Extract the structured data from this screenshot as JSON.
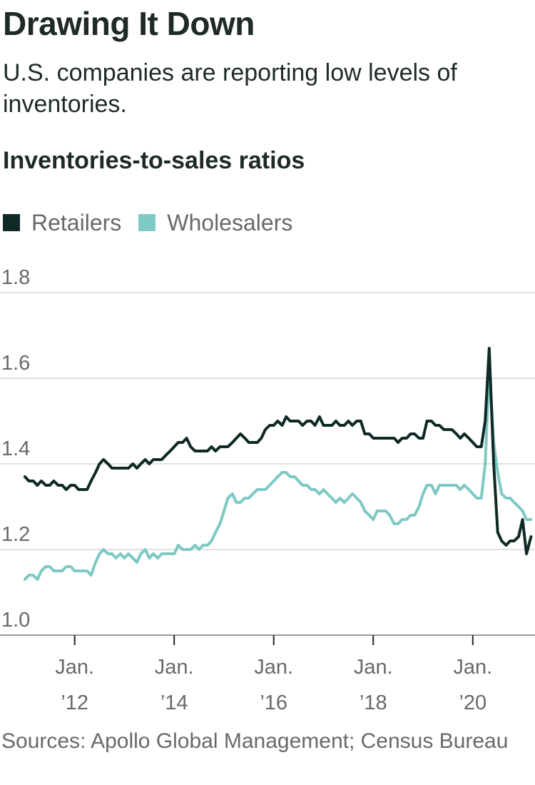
{
  "title": "Drawing It Down",
  "subtitle": "U.S. companies are reporting low levels of inventories.",
  "chart_heading": "Inventories-to-sales ratios",
  "source": "Sources: Apollo Global Management; Census Bureau",
  "chart_data": {
    "type": "line",
    "title": "Inventories-to-sales ratios",
    "xlabel": "",
    "ylabel": "",
    "xlim": [
      2010.5,
      2021.25
    ],
    "ylim": [
      1.0,
      1.8
    ],
    "y_ticks": [
      1.0,
      1.2,
      1.4,
      1.6,
      1.8
    ],
    "x_ticks": [
      {
        "x": 2012,
        "line1": "Jan.",
        "line2": "’12"
      },
      {
        "x": 2014,
        "line1": "Jan.",
        "line2": "’14"
      },
      {
        "x": 2016,
        "line1": "Jan.",
        "line2": "’16"
      },
      {
        "x": 2018,
        "line1": "Jan.",
        "line2": "’18"
      },
      {
        "x": 2020,
        "line1": "Jan.",
        "line2": "’20"
      }
    ],
    "grid": "horizontal",
    "legend_position": "top-left",
    "series": [
      {
        "name": "Retailers",
        "color": "#0f2a26",
        "x": [
          2011.0,
          2011.08,
          2011.17,
          2011.25,
          2011.33,
          2011.42,
          2011.5,
          2011.58,
          2011.67,
          2011.75,
          2011.83,
          2011.92,
          2012.0,
          2012.08,
          2012.17,
          2012.25,
          2012.33,
          2012.42,
          2012.5,
          2012.58,
          2012.67,
          2012.75,
          2012.83,
          2012.92,
          2013.0,
          2013.08,
          2013.17,
          2013.25,
          2013.33,
          2013.42,
          2013.5,
          2013.58,
          2013.67,
          2013.75,
          2013.83,
          2013.92,
          2014.0,
          2014.08,
          2014.17,
          2014.25,
          2014.33,
          2014.42,
          2014.5,
          2014.58,
          2014.67,
          2014.75,
          2014.83,
          2014.92,
          2015.0,
          2015.08,
          2015.17,
          2015.25,
          2015.33,
          2015.42,
          2015.5,
          2015.58,
          2015.67,
          2015.75,
          2015.83,
          2015.92,
          2016.0,
          2016.08,
          2016.17,
          2016.25,
          2016.33,
          2016.42,
          2016.5,
          2016.58,
          2016.67,
          2016.75,
          2016.83,
          2016.92,
          2017.0,
          2017.08,
          2017.17,
          2017.25,
          2017.33,
          2017.42,
          2017.5,
          2017.58,
          2017.67,
          2017.75,
          2017.83,
          2017.92,
          2018.0,
          2018.08,
          2018.17,
          2018.25,
          2018.33,
          2018.42,
          2018.5,
          2018.58,
          2018.67,
          2018.75,
          2018.83,
          2018.92,
          2019.0,
          2019.08,
          2019.17,
          2019.25,
          2019.33,
          2019.42,
          2019.5,
          2019.58,
          2019.67,
          2019.75,
          2019.83,
          2019.92,
          2020.0,
          2020.08,
          2020.17,
          2020.25,
          2020.33,
          2020.42,
          2020.5,
          2020.58,
          2020.67,
          2020.75,
          2020.83,
          2020.92,
          2021.0,
          2021.08,
          2021.17
        ],
        "values": [
          1.37,
          1.36,
          1.36,
          1.35,
          1.36,
          1.35,
          1.35,
          1.36,
          1.35,
          1.35,
          1.34,
          1.35,
          1.35,
          1.34,
          1.34,
          1.34,
          1.36,
          1.38,
          1.4,
          1.41,
          1.4,
          1.39,
          1.39,
          1.39,
          1.39,
          1.39,
          1.4,
          1.39,
          1.4,
          1.41,
          1.4,
          1.41,
          1.41,
          1.41,
          1.42,
          1.43,
          1.44,
          1.45,
          1.45,
          1.46,
          1.44,
          1.43,
          1.43,
          1.43,
          1.43,
          1.44,
          1.43,
          1.44,
          1.44,
          1.44,
          1.45,
          1.46,
          1.47,
          1.46,
          1.45,
          1.45,
          1.45,
          1.46,
          1.48,
          1.49,
          1.49,
          1.5,
          1.49,
          1.51,
          1.5,
          1.5,
          1.5,
          1.49,
          1.5,
          1.5,
          1.49,
          1.51,
          1.49,
          1.49,
          1.49,
          1.5,
          1.49,
          1.49,
          1.5,
          1.49,
          1.5,
          1.5,
          1.47,
          1.47,
          1.46,
          1.46,
          1.46,
          1.46,
          1.46,
          1.46,
          1.45,
          1.46,
          1.46,
          1.47,
          1.47,
          1.46,
          1.46,
          1.5,
          1.5,
          1.49,
          1.49,
          1.48,
          1.48,
          1.48,
          1.47,
          1.46,
          1.47,
          1.46,
          1.45,
          1.44,
          1.44,
          1.5,
          1.67,
          1.4,
          1.24,
          1.22,
          1.21,
          1.22,
          1.22,
          1.23,
          1.27,
          1.19,
          1.23
        ]
      },
      {
        "name": "Wholesalers",
        "color": "#7ec9c3",
        "x": [
          2011.0,
          2011.08,
          2011.17,
          2011.25,
          2011.33,
          2011.42,
          2011.5,
          2011.58,
          2011.67,
          2011.75,
          2011.83,
          2011.92,
          2012.0,
          2012.08,
          2012.17,
          2012.25,
          2012.33,
          2012.42,
          2012.5,
          2012.58,
          2012.67,
          2012.75,
          2012.83,
          2012.92,
          2013.0,
          2013.08,
          2013.17,
          2013.25,
          2013.33,
          2013.42,
          2013.5,
          2013.58,
          2013.67,
          2013.75,
          2013.83,
          2013.92,
          2014.0,
          2014.08,
          2014.17,
          2014.25,
          2014.33,
          2014.42,
          2014.5,
          2014.58,
          2014.67,
          2014.75,
          2014.83,
          2014.92,
          2015.0,
          2015.08,
          2015.17,
          2015.25,
          2015.33,
          2015.42,
          2015.5,
          2015.58,
          2015.67,
          2015.75,
          2015.83,
          2015.92,
          2016.0,
          2016.08,
          2016.17,
          2016.25,
          2016.33,
          2016.42,
          2016.5,
          2016.58,
          2016.67,
          2016.75,
          2016.83,
          2016.92,
          2017.0,
          2017.08,
          2017.17,
          2017.25,
          2017.33,
          2017.42,
          2017.5,
          2017.58,
          2017.67,
          2017.75,
          2017.83,
          2017.92,
          2018.0,
          2018.08,
          2018.17,
          2018.25,
          2018.33,
          2018.42,
          2018.5,
          2018.58,
          2018.67,
          2018.75,
          2018.83,
          2018.92,
          2019.0,
          2019.08,
          2019.17,
          2019.25,
          2019.33,
          2019.42,
          2019.5,
          2019.58,
          2019.67,
          2019.75,
          2019.83,
          2019.92,
          2020.0,
          2020.08,
          2020.17,
          2020.25,
          2020.33,
          2020.42,
          2020.5,
          2020.58,
          2020.67,
          2020.75,
          2020.83,
          2020.92,
          2021.0,
          2021.08,
          2021.17
        ],
        "values": [
          1.13,
          1.14,
          1.14,
          1.13,
          1.15,
          1.16,
          1.16,
          1.15,
          1.15,
          1.15,
          1.16,
          1.16,
          1.15,
          1.15,
          1.15,
          1.15,
          1.14,
          1.17,
          1.19,
          1.2,
          1.19,
          1.19,
          1.18,
          1.19,
          1.18,
          1.19,
          1.18,
          1.17,
          1.19,
          1.2,
          1.18,
          1.19,
          1.18,
          1.19,
          1.19,
          1.19,
          1.19,
          1.21,
          1.2,
          1.2,
          1.2,
          1.21,
          1.2,
          1.21,
          1.21,
          1.22,
          1.24,
          1.26,
          1.29,
          1.32,
          1.33,
          1.31,
          1.31,
          1.32,
          1.32,
          1.33,
          1.34,
          1.34,
          1.34,
          1.35,
          1.36,
          1.37,
          1.38,
          1.38,
          1.37,
          1.37,
          1.36,
          1.35,
          1.35,
          1.34,
          1.34,
          1.33,
          1.34,
          1.33,
          1.32,
          1.31,
          1.32,
          1.31,
          1.32,
          1.33,
          1.32,
          1.31,
          1.29,
          1.28,
          1.27,
          1.29,
          1.29,
          1.29,
          1.28,
          1.26,
          1.26,
          1.27,
          1.27,
          1.28,
          1.28,
          1.3,
          1.33,
          1.35,
          1.35,
          1.33,
          1.35,
          1.35,
          1.35,
          1.35,
          1.35,
          1.34,
          1.35,
          1.34,
          1.33,
          1.32,
          1.32,
          1.4,
          1.62,
          1.45,
          1.38,
          1.33,
          1.32,
          1.32,
          1.31,
          1.3,
          1.29,
          1.27,
          1.27
        ]
      }
    ]
  }
}
